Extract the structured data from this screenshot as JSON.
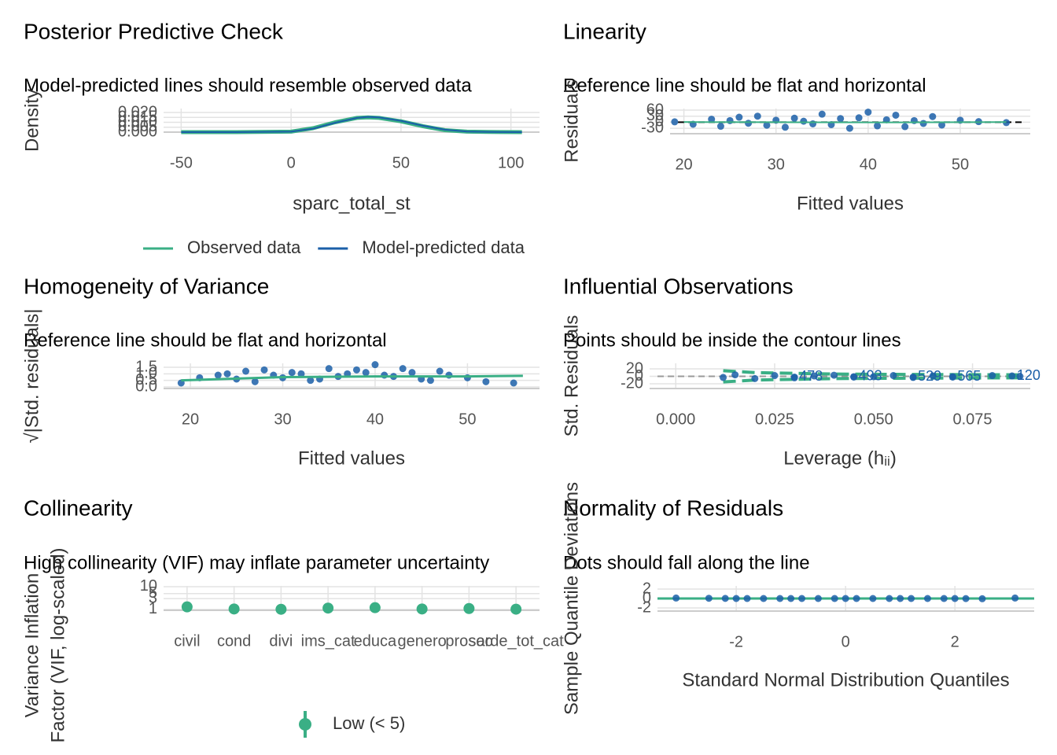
{
  "chart_data": [
    {
      "type": "line",
      "title": "Posterior Predictive Check",
      "subtitle": "Model-predicted lines should resemble observed data",
      "x_label": "sparc_total_st",
      "y_label": "Density",
      "xlim": [
        -58,
        113
      ],
      "xticks": [
        -50,
        0,
        50,
        100
      ],
      "ylim": [
        0,
        0.024
      ],
      "yticks": [
        {
          "value": 0,
          "label": "0.000"
        },
        {
          "value": 0.005,
          "label": "0.005"
        },
        {
          "value": 0.01,
          "label": "0.010"
        },
        {
          "value": 0.015,
          "label": "0.015"
        },
        {
          "value": 0.02,
          "label": "0.020"
        }
      ],
      "grid": true,
      "legend": "bottom",
      "series": [
        {
          "name": "Observed data",
          "color": "#3aaf85",
          "kind": "line",
          "width": 5,
          "x": [
            -50,
            -25,
            0,
            10,
            20,
            30,
            35,
            40,
            50,
            60,
            70,
            80,
            90,
            105
          ],
          "values": [
            0,
            0,
            0.0005,
            0.004,
            0.01,
            0.0145,
            0.015,
            0.0145,
            0.011,
            0.006,
            0.002,
            0.0005,
            0.0002,
            0
          ]
        },
        {
          "name": "Model-predicted data",
          "color": "#1b5fa8",
          "kind": "line",
          "width": 2,
          "x": [
            -50,
            -25,
            0,
            10,
            20,
            30,
            35,
            40,
            50,
            60,
            70,
            80,
            90,
            105
          ],
          "values": [
            0,
            0,
            0.0005,
            0.0035,
            0.0095,
            0.0145,
            0.0155,
            0.015,
            0.0115,
            0.0065,
            0.0025,
            0.0006,
            0.0002,
            0
          ]
        }
      ]
    },
    {
      "type": "scatter",
      "title": "Linearity",
      "subtitle": "Reference line should be flat and horizontal",
      "x_label": "Fitted values",
      "y_label": "Residuals",
      "xlim": [
        18.5,
        57.6
      ],
      "xticks": [
        20,
        30,
        40,
        50
      ],
      "ylim": [
        -57,
        68
      ],
      "yticks": [
        -30,
        0,
        30,
        60
      ],
      "grid": true,
      "reference_line": 0,
      "series": [
        {
          "color": "#1b5fa8",
          "kind": "points",
          "x": [
            19,
            21,
            23,
            24,
            25,
            26,
            27,
            28,
            29,
            30,
            31,
            32,
            33,
            34,
            35,
            36,
            37,
            38,
            39,
            40,
            41,
            42,
            43,
            44,
            45,
            46,
            47,
            48,
            50,
            52,
            55
          ],
          "values": [
            2,
            -10,
            15,
            -20,
            8,
            25,
            -5,
            30,
            -15,
            10,
            -25,
            20,
            5,
            -8,
            40,
            -12,
            18,
            -30,
            22,
            50,
            -18,
            12,
            35,
            -22,
            8,
            -6,
            28,
            -14,
            10,
            3,
            -2
          ]
        },
        {
          "color": "#3aaf85",
          "kind": "line",
          "width": 2,
          "x": [
            20,
            30,
            40,
            50,
            55
          ],
          "values": [
            1,
            0,
            -1,
            0,
            1
          ]
        }
      ]
    },
    {
      "type": "scatter",
      "title": "Homogeneity of Variance",
      "subtitle": "Reference line should be flat and horizontal",
      "x_label": "Fitted values",
      "y_label": "√|Std. residuals|",
      "xlim": [
        17.1,
        57.8
      ],
      "xticks": [
        20,
        30,
        40,
        50
      ],
      "ylim": [
        -0.12,
        1.8
      ],
      "yticks": [
        {
          "value": 0,
          "label": "0.0"
        },
        {
          "value": 0.5,
          "label": "0.5"
        },
        {
          "value": 1,
          "label": "1.0"
        },
        {
          "value": 1.5,
          "label": "1.5"
        }
      ],
      "grid": true,
      "series": [
        {
          "color": "#1b5fa8",
          "kind": "points",
          "x": [
            19,
            21,
            23,
            24,
            25,
            26,
            27,
            28,
            29,
            30,
            31,
            32,
            33,
            34,
            35,
            36,
            37,
            38,
            39,
            40,
            41,
            42,
            43,
            44,
            45,
            46,
            47,
            48,
            50,
            52,
            55
          ],
          "values": [
            0.3,
            0.7,
            0.9,
            1.0,
            0.6,
            1.2,
            0.4,
            1.3,
            0.9,
            0.7,
            1.1,
            1.0,
            0.5,
            0.6,
            1.4,
            0.8,
            1.0,
            1.3,
            1.1,
            1.7,
            0.9,
            0.8,
            1.4,
            1.1,
            0.6,
            0.5,
            1.2,
            0.9,
            0.7,
            0.4,
            0.3
          ]
        },
        {
          "color": "#3aaf85",
          "kind": "line",
          "width": 3,
          "x": [
            19,
            30,
            40,
            50,
            56
          ],
          "values": [
            0.5,
            0.75,
            0.8,
            0.8,
            0.85
          ]
        }
      ]
    },
    {
      "type": "scatter",
      "title": "Influential Observations",
      "subtitle": "Points should be inside the contour lines",
      "x_label": "Leverage (hᵢᵢ)",
      "y_label": "Std. Residuals",
      "xlim": [
        -0.0066,
        0.0896
      ],
      "xticks": [
        {
          "value": 0,
          "label": "0.000"
        },
        {
          "value": 0.025,
          "label": "0.025"
        },
        {
          "value": 0.05,
          "label": "0.050"
        },
        {
          "value": 0.075,
          "label": "0.075"
        }
      ],
      "ylim": [
        -32.6,
        34.7
      ],
      "yticks": [
        -20,
        0,
        20
      ],
      "grid": true,
      "reference_line": 0,
      "series": [
        {
          "color": "#3aaf85",
          "kind": "line",
          "dash": true,
          "width": 4,
          "x": [
            0.012,
            0.02,
            0.04,
            0.06,
            0.088
          ],
          "values": [
            15,
            10,
            6,
            5,
            4
          ]
        },
        {
          "color": "#3aaf85",
          "kind": "line",
          "dash": true,
          "width": 4,
          "x": [
            0.012,
            0.02,
            0.04,
            0.06,
            0.088
          ],
          "values": [
            -15,
            -10,
            -6,
            -5,
            -4
          ]
        },
        {
          "color": "#1b5fa8",
          "kind": "points",
          "x": [
            0.012,
            0.015,
            0.02,
            0.025,
            0.03,
            0.035,
            0.04,
            0.045,
            0.05,
            0.055,
            0.06,
            0.065,
            0.07,
            0.08,
            0.087
          ],
          "values": [
            -3,
            4,
            -6,
            2,
            -4,
            1,
            3,
            -2,
            -1,
            2,
            -3,
            1,
            -1,
            2,
            0
          ]
        },
        {
          "color": "#1b5fa8",
          "kind": "labels",
          "x": [
            0.03,
            0.045,
            0.06,
            0.07,
            0.085
          ],
          "values": [
            -2,
            -1,
            -2,
            -2,
            1
          ],
          "labels": [
            "478",
            "493",
            "529",
            "565",
            "120"
          ]
        }
      ]
    },
    {
      "type": "dot",
      "title": "Collinearity",
      "subtitle": "High collinearity (VIF) may inflate parameter uncertainty",
      "x_label": "",
      "y_label": [
        "Variance Inflation",
        "Factor (VIF, log-scaled)"
      ],
      "categories": [
        "civil",
        "cond",
        "divi",
        "ims_cat",
        "educa",
        "genero",
        "prosoc",
        "sarde_tot_cat"
      ],
      "log_y": true,
      "ylim": [
        0.92,
        10.8
      ],
      "yticks": [
        1,
        3,
        5,
        10
      ],
      "grid": true,
      "legend": "bottom",
      "series": [
        {
          "name": "Low (< 5)",
          "color": "#3aaf85",
          "kind": "dot",
          "values": [
            1.3,
            1.05,
            1.02,
            1.15,
            1.2,
            1.05,
            1.1,
            1.03
          ]
        }
      ]
    },
    {
      "type": "scatter",
      "title": "Normality of Residuals",
      "subtitle": "Dots should fall along the line",
      "x_label": "Standard Normal Distribution Quantiles",
      "y_label": "Sample Quantile Deviations",
      "xlim": [
        -3.44,
        3.45
      ],
      "xticks": [
        -2,
        0,
        2
      ],
      "ylim": [
        -2.67,
        2.67
      ],
      "yticks": [
        -2,
        0,
        2
      ],
      "grid": true,
      "series": [
        {
          "color": "#3aaf85",
          "kind": "line",
          "width": 3,
          "x": [
            -3.44,
            3.45
          ],
          "values": [
            0,
            0
          ]
        },
        {
          "color": "#1b5fa8",
          "kind": "points",
          "x": [
            -3.1,
            -2.5,
            -2.2,
            -2,
            -1.8,
            -1.5,
            -1.2,
            -1,
            -0.8,
            -0.5,
            -0.2,
            0,
            0.2,
            0.5,
            0.8,
            1,
            1.2,
            1.5,
            1.8,
            2,
            2.2,
            2.5,
            3.1
          ],
          "values": [
            0.1,
            0.05,
            0.02,
            0,
            0,
            0,
            0,
            0,
            0,
            0,
            0,
            0,
            0,
            0,
            0,
            0,
            0,
            0,
            0,
            0,
            -0.02,
            -0.05,
            0.1
          ]
        }
      ]
    }
  ]
}
